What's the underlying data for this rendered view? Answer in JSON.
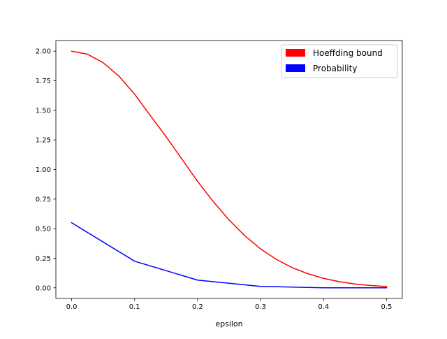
{
  "chart_data": {
    "type": "line",
    "xlabel": "epsilon",
    "ylabel": "",
    "title": "",
    "xlim": [
      -0.025,
      0.525
    ],
    "ylim": [
      -0.09,
      2.09
    ],
    "xticks": [
      0.0,
      0.1,
      0.2,
      0.3,
      0.4,
      0.5
    ],
    "xtick_labels": [
      "0.0",
      "0.1",
      "0.2",
      "0.3",
      "0.4",
      "0.5"
    ],
    "yticks": [
      0.0,
      0.25,
      0.5,
      0.75,
      1.0,
      1.25,
      1.5,
      1.75,
      2.0
    ],
    "ytick_labels": [
      "0.00",
      "0.25",
      "0.50",
      "0.75",
      "1.00",
      "1.25",
      "1.50",
      "1.75",
      "2.00"
    ],
    "grid": false,
    "legend_position": "top-right",
    "series": [
      {
        "name": "Hoeffding bound",
        "color": "#ff0000",
        "x": [
          0.0,
          0.025,
          0.05,
          0.075,
          0.1,
          0.125,
          0.15,
          0.175,
          0.2,
          0.225,
          0.25,
          0.275,
          0.3,
          0.325,
          0.35,
          0.375,
          0.4,
          0.425,
          0.45,
          0.475,
          0.5
        ],
        "y": [
          2.0,
          1.975,
          1.903,
          1.79,
          1.637,
          1.455,
          1.277,
          1.088,
          0.899,
          0.728,
          0.573,
          0.44,
          0.329,
          0.24,
          0.171,
          0.119,
          0.08,
          0.052,
          0.032,
          0.019,
          0.011
        ]
      },
      {
        "name": "Probability",
        "color": "#0000ff",
        "x": [
          0.0,
          0.1,
          0.2,
          0.3,
          0.4,
          0.5
        ],
        "y": [
          0.55,
          0.225,
          0.065,
          0.012,
          0.0,
          0.0
        ]
      }
    ]
  }
}
